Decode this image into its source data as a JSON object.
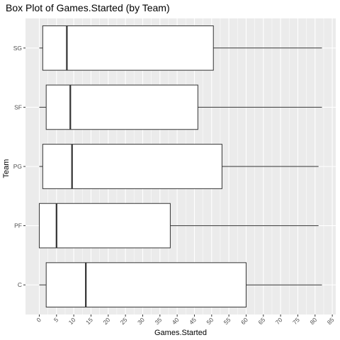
{
  "chart_data": {
    "type": "boxplot",
    "orientation": "horizontal",
    "title": "Box Plot of Games.Started (by Team)",
    "xlabel": "Games.Started",
    "ylabel": "Team",
    "xlim": [
      -4,
      86
    ],
    "x_ticks": [
      "0",
      "5",
      "10",
      "15",
      "20",
      "25",
      "30",
      "35",
      "40",
      "45",
      "50",
      "55",
      "60",
      "65",
      "70",
      "75",
      "80",
      "85"
    ],
    "categories": [
      "C",
      "PF",
      "PG",
      "SF",
      "SG"
    ],
    "boxes": [
      {
        "category": "C",
        "min": 0,
        "q1": 2,
        "median": 13.5,
        "q3": 60,
        "max": 82
      },
      {
        "category": "PF",
        "min": 0,
        "q1": 0,
        "median": 5,
        "q3": 38,
        "max": 81
      },
      {
        "category": "PG",
        "min": 0,
        "q1": 1,
        "median": 9.5,
        "q3": 53,
        "max": 81
      },
      {
        "category": "SF",
        "min": 0,
        "q1": 2,
        "median": 9,
        "q3": 46,
        "max": 82
      },
      {
        "category": "SG",
        "min": 0,
        "q1": 1,
        "median": 8,
        "q3": 50.5,
        "max": 82
      }
    ],
    "grid": true,
    "colors": {
      "panel": "#ebebeb",
      "grid": "#ffffff",
      "box_fill": "#ffffff",
      "box_stroke": "#333333"
    }
  }
}
